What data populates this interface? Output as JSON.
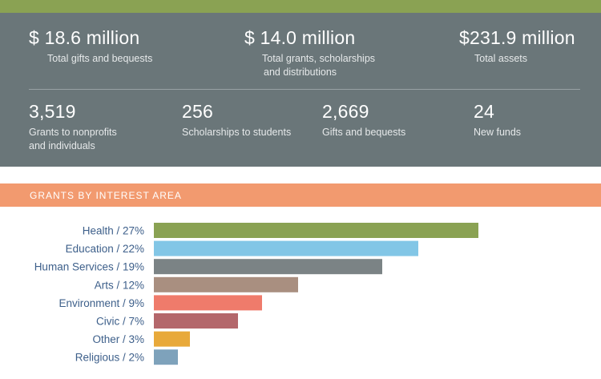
{
  "colors": {
    "top_bar": "#8aa253",
    "stats_bg": "#6a7679",
    "header_bg": "#f29a6f",
    "label_text": "#3d5f8a"
  },
  "stats_top": [
    {
      "value": "$ 18.6 million",
      "label": "Total gifts and bequests"
    },
    {
      "value": "$ 14.0 million",
      "label_line1": "Total grants, scholarships",
      "label_line2": "and distributions"
    },
    {
      "value": "$231.9 million",
      "label": "Total assets"
    }
  ],
  "stats_bottom": [
    {
      "value": "3,519",
      "label_line1": "Grants to nonprofits",
      "label_line2": "and individuals"
    },
    {
      "value": "256",
      "label": "Scholarships to students"
    },
    {
      "value": "2,669",
      "label": "Gifts and bequests"
    },
    {
      "value": "24",
      "label": "New funds"
    }
  ],
  "section_title": "GRANTS BY INTEREST AREA",
  "chart_data": {
    "type": "bar",
    "orientation": "horizontal",
    "title": "GRANTS BY INTEREST AREA",
    "categories": [
      "Health / 27%",
      "Education / 22%",
      "Human Services / 19%",
      "Arts / 12%",
      "Environment / 9%",
      "Civic / 7%",
      "Other / 3%",
      "Religious / 2%"
    ],
    "values": [
      27,
      22,
      19,
      12,
      9,
      7,
      3,
      2
    ],
    "colors": [
      "#8aa253",
      "#82c6e6",
      "#7b8385",
      "#a98f80",
      "#ef7b6b",
      "#b4676b",
      "#e8a93a",
      "#7ea2bb"
    ],
    "xlim": [
      0,
      27
    ],
    "grid": false,
    "legend": "none"
  }
}
